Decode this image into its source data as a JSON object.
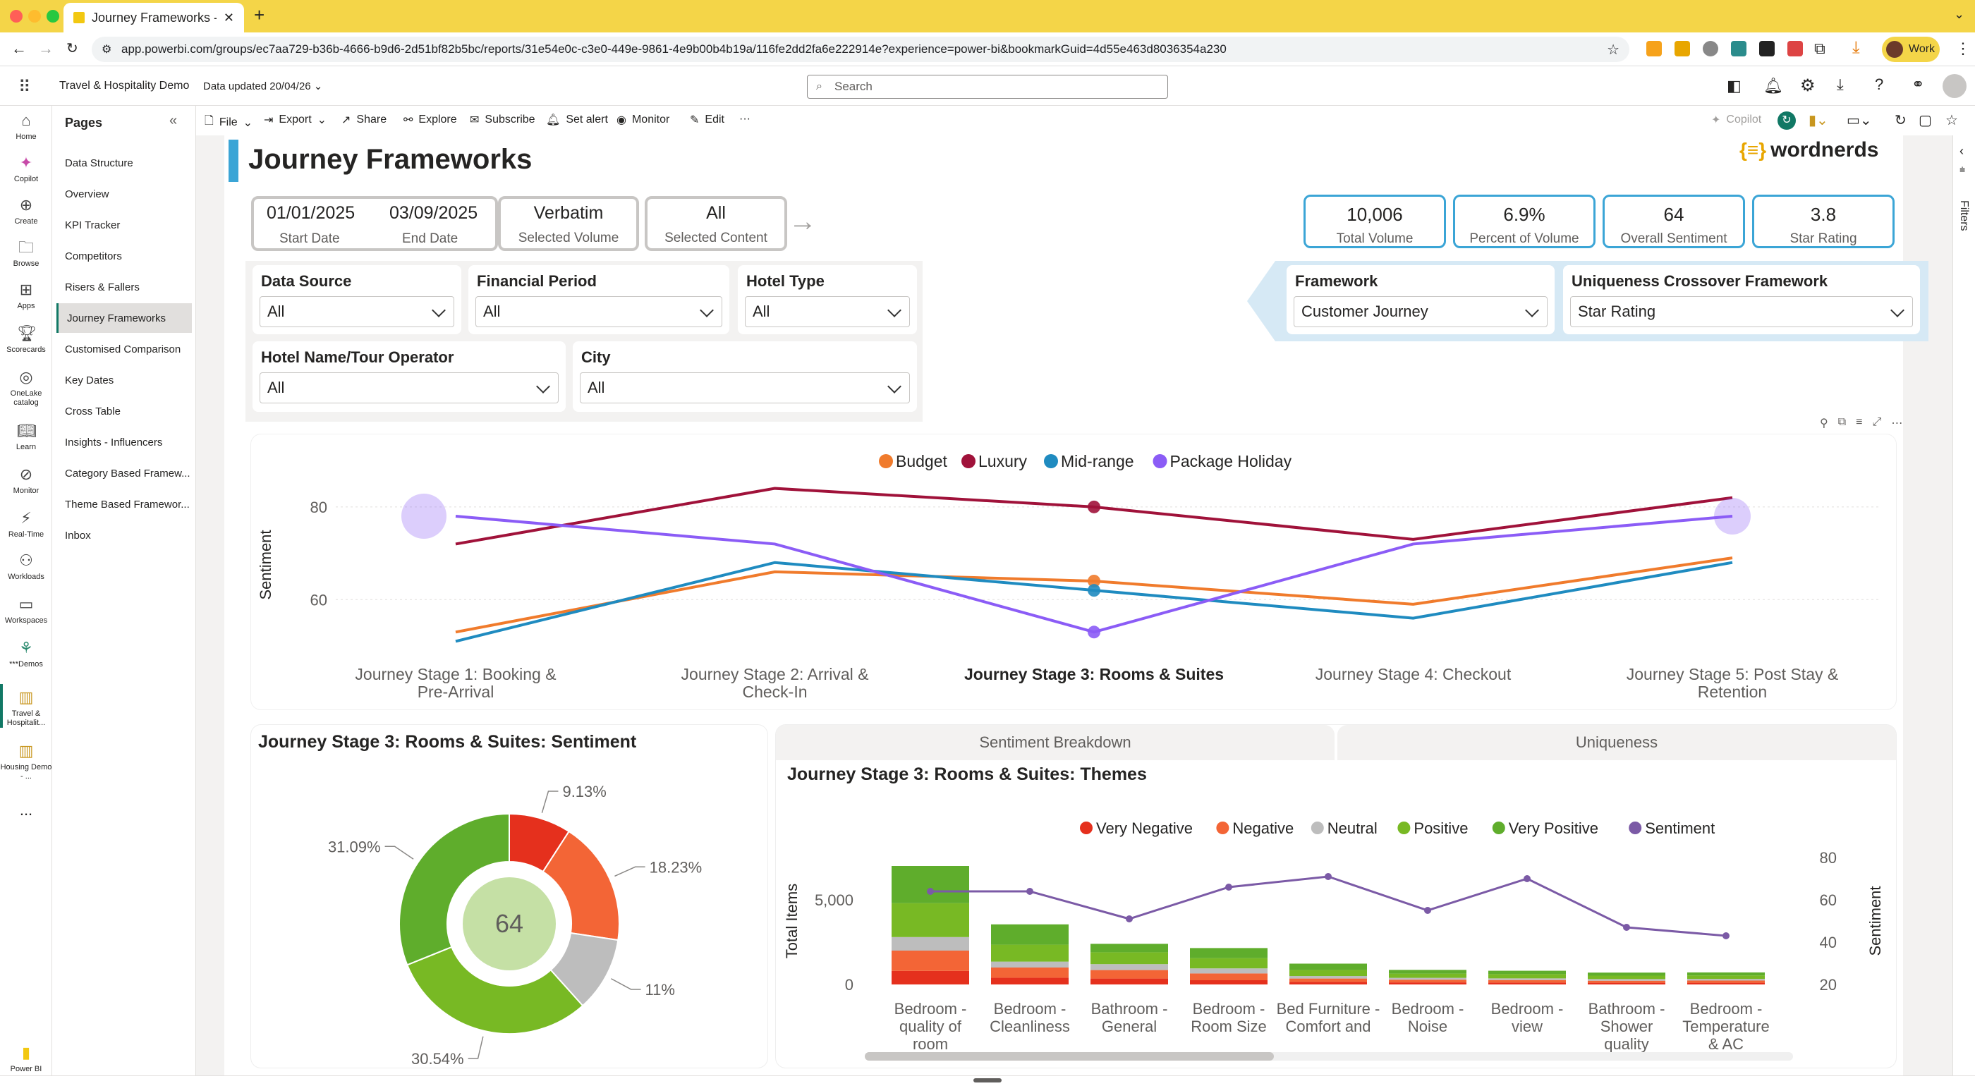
{
  "browser": {
    "tab_title": "Journey Frameworks - Travel",
    "url": "app.powerbi.com/groups/ec7aa729-b36b-4666-b9d6-2d51bf82b5bc/reports/31e54e0c-c3e0-449e-9861-4e9b00b4b19a/116fe2dd2fa6e222914e?experience=power-bi&bookmarkGuid=4d55e463d8036354a230",
    "profile": "Work"
  },
  "app": {
    "workspace": "Travel & Hospitality Demo",
    "data_updated": "Data updated 20/04/26",
    "search_placeholder": "Search"
  },
  "rail": [
    {
      "label": "Home",
      "icon": "home-icon"
    },
    {
      "label": "Copilot",
      "icon": "copilot-icon"
    },
    {
      "label": "Create",
      "icon": "plus-icon"
    },
    {
      "label": "Browse",
      "icon": "folder-icon"
    },
    {
      "label": "Apps",
      "icon": "apps-icon"
    },
    {
      "label": "Scorecards",
      "icon": "trophy-icon"
    },
    {
      "label": "OneLake catalog",
      "icon": "onelake-icon"
    },
    {
      "label": "Learn",
      "icon": "book-icon"
    },
    {
      "label": "Monitor",
      "icon": "monitor-icon"
    },
    {
      "label": "Real-Time",
      "icon": "lightning-icon"
    },
    {
      "label": "Workloads",
      "icon": "workloads-icon"
    },
    {
      "label": "Workspaces",
      "icon": "workspaces-icon"
    },
    {
      "label": "***Demos",
      "icon": "demos-icon"
    },
    {
      "label": "Travel & Hospitalit...",
      "icon": "report-icon"
    },
    {
      "label": "Housing Demo - ...",
      "icon": "report-icon"
    },
    {
      "label": "...",
      "icon": "more-icon"
    },
    {
      "label": "Power BI",
      "icon": "powerbi-icon"
    }
  ],
  "pages": {
    "title": "Pages",
    "items": [
      "Data Structure",
      "Overview",
      "KPI Tracker",
      "Competitors",
      "Risers & Fallers",
      "Journey Frameworks",
      "Customised Comparison",
      "Key Dates",
      "Cross Table",
      "Insights - Influencers",
      "Category Based Framew...",
      "Theme Based Framewor...",
      "Inbox"
    ],
    "active": "Journey Frameworks"
  },
  "toolbar": {
    "file": "File",
    "export": "Export",
    "share": "Share",
    "explore": "Explore",
    "subscribe": "Subscribe",
    "set_alert": "Set alert",
    "monitor": "Monitor",
    "edit": "Edit",
    "more": "···",
    "copilot": "Copilot",
    "filters": "Filters"
  },
  "report": {
    "title": "Journey Frameworks",
    "brand": "wordnerds",
    "brand_mark": "{≡}",
    "dates": {
      "start": "01/01/2025",
      "start_label": "Start Date",
      "end": "03/09/2025",
      "end_label": "End Date"
    },
    "selected_volume": {
      "value": "Verbatim",
      "label": "Selected Volume"
    },
    "selected_content": {
      "value": "All",
      "label": "Selected Content"
    },
    "kpis": [
      {
        "value": "10,006",
        "label": "Total Volume"
      },
      {
        "value": "6.9%",
        "label": "Percent of Volume"
      },
      {
        "value": "64",
        "label": "Overall Sentiment"
      },
      {
        "value": "3.8",
        "label": "Star Rating"
      }
    ],
    "slicers": {
      "data_source": {
        "title": "Data Source",
        "value": "All"
      },
      "financial_period": {
        "title": "Financial Period",
        "value": "All"
      },
      "hotel_type": {
        "title": "Hotel Type",
        "value": "All"
      },
      "hotel_name": {
        "title": "Hotel Name/Tour Operator",
        "value": "All"
      },
      "city": {
        "title": "City",
        "value": "All"
      },
      "framework": {
        "title": "Framework",
        "value": "Customer Journey"
      },
      "uniqueness": {
        "title": "Uniqueness Crossover Framework",
        "value": "Star Rating"
      }
    },
    "tabs": {
      "sentiment_breakdown": "Sentiment Breakdown",
      "uniqueness": "Uniqueness"
    },
    "donut_title": "Journey Stage 3: Rooms & Suites: Sentiment",
    "themes_title": "Journey Stage 3: Rooms & Suites: Themes"
  },
  "chart_data": [
    {
      "type": "line",
      "ylabel": "Sentiment",
      "yticks": [
        60,
        80
      ],
      "ylim": [
        50,
        85
      ],
      "categories": [
        "Journey Stage 1: Booking & Pre-Arrival",
        "Journey Stage 2: Arrival & Check-In",
        "Journey Stage 3: Rooms & Suites",
        "Journey Stage 4: Checkout",
        "Journey Stage 5: Post Stay & Retention"
      ],
      "series": [
        {
          "name": "Budget",
          "color": "#f07b2c",
          "values": [
            53,
            66,
            64,
            59,
            69
          ]
        },
        {
          "name": "Luxury",
          "color": "#a0123a",
          "values": [
            72,
            84,
            80,
            73,
            82
          ]
        },
        {
          "name": "Mid-range",
          "color": "#1f8bc0",
          "values": [
            51,
            68,
            62,
            56,
            68
          ]
        },
        {
          "name": "Package Holiday",
          "color": "#8b5cf6",
          "values": [
            78,
            72,
            53,
            72,
            78
          ]
        }
      ]
    },
    {
      "type": "pie",
      "center_label": "64",
      "slices": [
        {
          "label": "9.13%",
          "value": 9.13,
          "color": "#e5301d"
        },
        {
          "label": "18.23%",
          "value": 18.23,
          "color": "#f36536"
        },
        {
          "label": "11%",
          "value": 11,
          "color": "#bdbdbd"
        },
        {
          "label": "30.54%",
          "value": 30.54,
          "color": "#78b924"
        },
        {
          "label": "31.09%",
          "value": 31.09,
          "color": "#5fad2c"
        }
      ]
    },
    {
      "type": "bar",
      "stacked": true,
      "ylabel": "Total Items",
      "y2label": "Sentiment",
      "yticks": [
        0,
        5000
      ],
      "y2ticks": [
        20,
        40,
        60,
        80
      ],
      "categories": [
        "Bedroom - quality of room",
        "Bedroom - Cleanliness",
        "Bathroom - General",
        "Bedroom - Room Size",
        "Bed Furniture - Comfort and",
        "Bedroom - Noise",
        "Bedroom - view",
        "Bathroom - Shower quality",
        "Bedroom - Temperature & AC"
      ],
      "series": [
        {
          "name": "Very Negative",
          "color": "#e5301d",
          "values": [
            800,
            400,
            350,
            250,
            150,
            120,
            110,
            100,
            100
          ]
        },
        {
          "name": "Negative",
          "color": "#f36536",
          "values": [
            1200,
            600,
            500,
            400,
            200,
            160,
            150,
            120,
            130
          ]
        },
        {
          "name": "Neutral",
          "color": "#bdbdbd",
          "values": [
            800,
            350,
            350,
            300,
            150,
            110,
            100,
            100,
            100
          ]
        },
        {
          "name": "Positive",
          "color": "#78b924",
          "values": [
            2000,
            1000,
            700,
            600,
            350,
            250,
            250,
            200,
            200
          ]
        },
        {
          "name": "Very Positive",
          "color": "#5fad2c",
          "values": [
            2200,
            1200,
            500,
            600,
            380,
            220,
            200,
            180,
            180
          ]
        }
      ],
      "line": {
        "name": "Sentiment",
        "color": "#7b5aa6",
        "values": [
          64,
          64,
          51,
          66,
          71,
          55,
          70,
          47,
          43
        ]
      }
    }
  ]
}
